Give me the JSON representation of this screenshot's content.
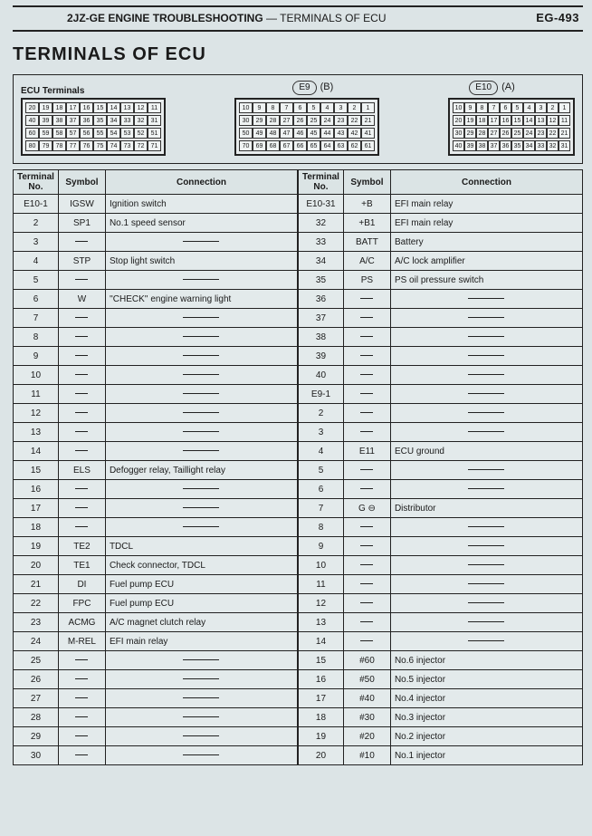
{
  "header": {
    "left_bold": "2JZ-GE ENGINE TROUBLESHOOTING",
    "left_rest": " — TERMINALS OF ECU",
    "right": "EG-493"
  },
  "title": "TERMINALS OF ECU",
  "ecu_label": "ECU Terminals",
  "conn_labels": {
    "e9": "E9",
    "b": "(B)",
    "e10": "E10",
    "a": "(A)"
  },
  "connectors": [
    {
      "rows": [
        [
          "20",
          "19",
          "18",
          "17",
          "16",
          "15",
          "14",
          "13",
          "12",
          "11"
        ],
        [
          "40",
          "39",
          "38",
          "37",
          "36",
          "35",
          "34",
          "33",
          "32",
          "31"
        ],
        [
          "60",
          "59",
          "58",
          "57",
          "56",
          "55",
          "54",
          "53",
          "52",
          "51"
        ],
        [
          "80",
          "79",
          "78",
          "77",
          "76",
          "75",
          "74",
          "73",
          "72",
          "71"
        ]
      ]
    },
    {
      "rows": [
        [
          "10",
          "9",
          "8",
          "7",
          "6",
          "5",
          "4",
          "3",
          "2",
          "1"
        ],
        [
          "30",
          "29",
          "28",
          "27",
          "26",
          "25",
          "24",
          "23",
          "22",
          "21"
        ],
        [
          "50",
          "49",
          "48",
          "47",
          "46",
          "45",
          "44",
          "43",
          "42",
          "41"
        ],
        [
          "70",
          "69",
          "68",
          "67",
          "66",
          "65",
          "64",
          "63",
          "62",
          "61"
        ]
      ]
    },
    {
      "rows": [
        [
          "10",
          "9",
          "8",
          "7",
          "6",
          "5",
          "4",
          "3",
          "2",
          "1"
        ],
        [
          "20",
          "19",
          "18",
          "17",
          "16",
          "15",
          "14",
          "13",
          "12",
          "11"
        ],
        [
          "30",
          "29",
          "28",
          "27",
          "26",
          "25",
          "24",
          "23",
          "22",
          "21"
        ],
        [
          "40",
          "39",
          "38",
          "37",
          "36",
          "35",
          "34",
          "33",
          "32",
          "31"
        ]
      ]
    }
  ],
  "table_headers": {
    "tn": "Terminal\nNo.",
    "sym": "Symbol",
    "conn": "Connection"
  },
  "left": [
    {
      "tn": "E10-1",
      "sym": "IGSW",
      "conn": "Ignition switch"
    },
    {
      "tn": "2",
      "sym": "SP1",
      "conn": "No.1 speed sensor"
    },
    {
      "tn": "3",
      "sym": "–",
      "conn": ""
    },
    {
      "tn": "4",
      "sym": "STP",
      "conn": "Stop light switch"
    },
    {
      "tn": "5",
      "sym": "–",
      "conn": ""
    },
    {
      "tn": "6",
      "sym": "W",
      "conn": "''CHECK'' engine warning light"
    },
    {
      "tn": "7",
      "sym": "–",
      "conn": ""
    },
    {
      "tn": "8",
      "sym": "–",
      "conn": ""
    },
    {
      "tn": "9",
      "sym": "–",
      "conn": ""
    },
    {
      "tn": "10",
      "sym": "–",
      "conn": ""
    },
    {
      "tn": "11",
      "sym": "–",
      "conn": ""
    },
    {
      "tn": "12",
      "sym": "–",
      "conn": ""
    },
    {
      "tn": "13",
      "sym": "–",
      "conn": ""
    },
    {
      "tn": "14",
      "sym": "–",
      "conn": ""
    },
    {
      "tn": "15",
      "sym": "ELS",
      "conn": "Defogger relay, Taillight relay"
    },
    {
      "tn": "16",
      "sym": "–",
      "conn": ""
    },
    {
      "tn": "17",
      "sym": "–",
      "conn": ""
    },
    {
      "tn": "18",
      "sym": "–",
      "conn": ""
    },
    {
      "tn": "19",
      "sym": "TE2",
      "conn": "TDCL"
    },
    {
      "tn": "20",
      "sym": "TE1",
      "conn": "Check connector, TDCL"
    },
    {
      "tn": "21",
      "sym": "DI",
      "conn": "Fuel pump ECU"
    },
    {
      "tn": "22",
      "sym": "FPC",
      "conn": "Fuel pump ECU"
    },
    {
      "tn": "23",
      "sym": "ACMG",
      "conn": "A/C magnet clutch relay"
    },
    {
      "tn": "24",
      "sym": "M-REL",
      "conn": "EFI main relay"
    },
    {
      "tn": "25",
      "sym": "–",
      "conn": ""
    },
    {
      "tn": "26",
      "sym": "–",
      "conn": ""
    },
    {
      "tn": "27",
      "sym": "–",
      "conn": ""
    },
    {
      "tn": "28",
      "sym": "–",
      "conn": ""
    },
    {
      "tn": "29",
      "sym": "–",
      "conn": ""
    },
    {
      "tn": "30",
      "sym": "–",
      "conn": ""
    }
  ],
  "right": [
    {
      "tn": "E10-31",
      "sym": "+B",
      "conn": "EFI main relay"
    },
    {
      "tn": "32",
      "sym": "+B1",
      "conn": "EFI main relay"
    },
    {
      "tn": "33",
      "sym": "BATT",
      "conn": "Battery"
    },
    {
      "tn": "34",
      "sym": "A/C",
      "conn": "A/C lock amplifier"
    },
    {
      "tn": "35",
      "sym": "PS",
      "conn": "PS oil pressure switch"
    },
    {
      "tn": "36",
      "sym": "–",
      "conn": ""
    },
    {
      "tn": "37",
      "sym": "–",
      "conn": ""
    },
    {
      "tn": "38",
      "sym": "–",
      "conn": ""
    },
    {
      "tn": "39",
      "sym": "–",
      "conn": ""
    },
    {
      "tn": "40",
      "sym": "–",
      "conn": ""
    },
    {
      "tn": "E9-1",
      "sym": "–",
      "conn": ""
    },
    {
      "tn": "2",
      "sym": "–",
      "conn": ""
    },
    {
      "tn": "3",
      "sym": "–",
      "conn": ""
    },
    {
      "tn": "4",
      "sym": "E11",
      "conn": "ECU ground"
    },
    {
      "tn": "5",
      "sym": "–",
      "conn": ""
    },
    {
      "tn": "6",
      "sym": "–",
      "conn": ""
    },
    {
      "tn": "7",
      "sym": "G ⊖",
      "conn": "Distributor"
    },
    {
      "tn": "8",
      "sym": "–",
      "conn": ""
    },
    {
      "tn": "9",
      "sym": "–",
      "conn": ""
    },
    {
      "tn": "10",
      "sym": "–",
      "conn": ""
    },
    {
      "tn": "11",
      "sym": "–",
      "conn": ""
    },
    {
      "tn": "12",
      "sym": "–",
      "conn": ""
    },
    {
      "tn": "13",
      "sym": "–",
      "conn": ""
    },
    {
      "tn": "14",
      "sym": "–",
      "conn": ""
    },
    {
      "tn": "15",
      "sym": "#60",
      "conn": "No.6 injector"
    },
    {
      "tn": "16",
      "sym": "#50",
      "conn": "No.5 injector"
    },
    {
      "tn": "17",
      "sym": "#40",
      "conn": "No.4 injector"
    },
    {
      "tn": "18",
      "sym": "#30",
      "conn": "No.3 injector"
    },
    {
      "tn": "19",
      "sym": "#20",
      "conn": "No.2 injector"
    },
    {
      "tn": "20",
      "sym": "#10",
      "conn": "No.1 injector"
    }
  ]
}
